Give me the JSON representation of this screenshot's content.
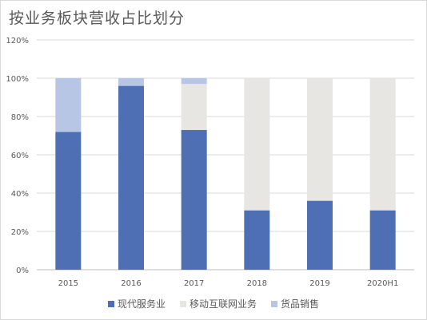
{
  "title": "按业务板块营收占比划分",
  "chart_data": {
    "type": "bar",
    "stacked": true,
    "categories": [
      "2015",
      "2016",
      "2017",
      "2018",
      "2019",
      "2020H1"
    ],
    "series": [
      {
        "name": "现代服务业",
        "color": "#4f6fb5",
        "values": [
          72,
          96,
          73,
          31,
          36,
          31
        ]
      },
      {
        "name": "移动互联网业务",
        "color": "#e8e6e3",
        "values": [
          0,
          0,
          24,
          69,
          64,
          69
        ]
      },
      {
        "name": "货品销售",
        "color": "#b8c6e5",
        "values": [
          28,
          4,
          3,
          0,
          0,
          0
        ]
      }
    ],
    "ylim": [
      0,
      120
    ],
    "yticks": [
      "0%",
      "20%",
      "40%",
      "60%",
      "80%",
      "100%",
      "120%"
    ],
    "grid": true,
    "legend": "bottom"
  }
}
